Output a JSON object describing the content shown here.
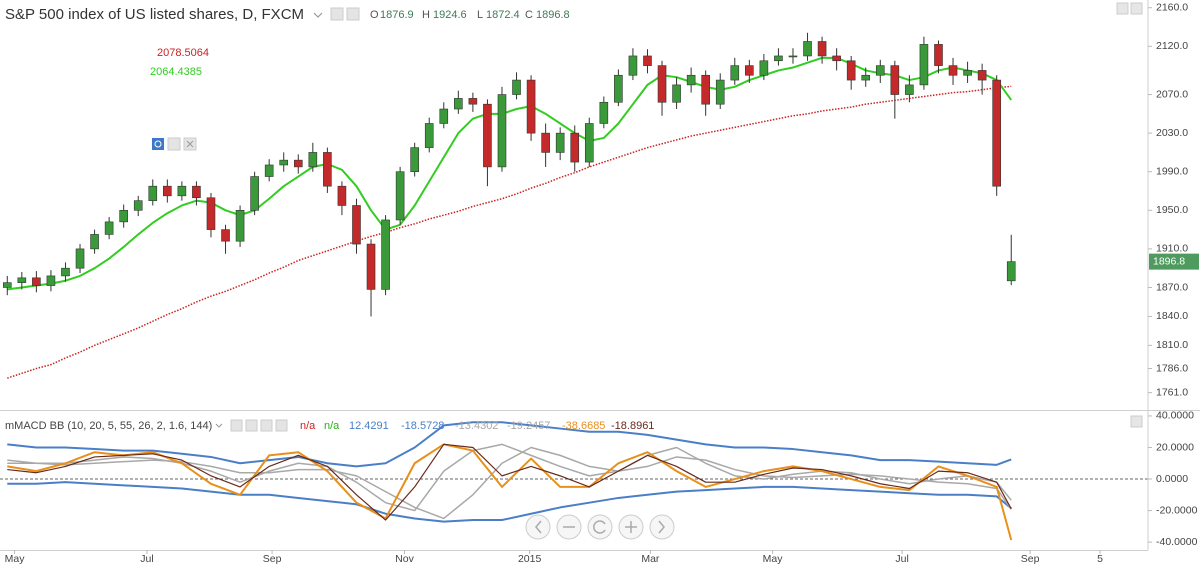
{
  "chart_data": [
    {
      "type": "candlestick",
      "title": "S&P 500 index of US listed shares, D, FXCM",
      "ohlc_labels": [
        "O",
        "H",
        "L",
        "C"
      ],
      "up_color": "#3a9a3a",
      "down_color": "#c42a2a",
      "x": [
        0,
        1,
        2,
        3,
        4,
        5,
        6,
        7,
        8,
        9,
        10,
        11,
        12,
        13,
        14,
        15,
        16,
        17,
        18,
        19,
        20,
        21,
        22,
        23,
        24,
        25,
        26,
        27,
        28,
        29,
        30,
        31,
        32,
        33,
        34,
        35,
        36,
        37,
        38,
        39,
        40,
        41,
        42,
        43,
        44,
        45,
        46,
        47,
        48,
        49,
        50,
        51,
        52,
        53,
        54,
        55,
        56,
        57,
        58,
        59,
        60,
        61,
        62,
        63,
        64,
        65,
        66,
        67,
        68,
        69
      ],
      "open": [
        1870,
        1875,
        1880,
        1872,
        1882,
        1890,
        1910,
        1925,
        1938,
        1950,
        1960,
        1975,
        1965,
        1975,
        1963,
        1930,
        1918,
        1950,
        1985,
        1997,
        2002,
        1995,
        2010,
        1975,
        1955,
        1915,
        1868,
        1940,
        1990,
        2015,
        2040,
        2055,
        2066,
        2060,
        1995,
        2070,
        2085,
        2030,
        2010,
        2030,
        2000,
        2040,
        2062,
        2090,
        2110,
        2100,
        2062,
        2080,
        2090,
        2060,
        2085,
        2100,
        2090,
        2105,
        2110,
        2110,
        2125,
        2110,
        2105,
        2085,
        2090,
        2100,
        2070,
        2080,
        2122,
        2100,
        2090,
        2095,
        2085,
        1876.9
      ],
      "high": [
        1882,
        1886,
        1887,
        1888,
        1896,
        1915,
        1930,
        1943,
        1956,
        1965,
        1982,
        1982,
        1980,
        1980,
        1968,
        1935,
        1955,
        1990,
        2003,
        2010,
        2008,
        2020,
        2015,
        1980,
        1962,
        1920,
        1945,
        1995,
        2020,
        2046,
        2062,
        2074,
        2072,
        2065,
        2078,
        2093,
        2090,
        2040,
        2036,
        2038,
        2046,
        2068,
        2096,
        2118,
        2117,
        2105,
        2088,
        2098,
        2095,
        2092,
        2108,
        2106,
        2112,
        2118,
        2118,
        2134,
        2130,
        2118,
        2110,
        2098,
        2106,
        2105,
        2090,
        2130,
        2126,
        2108,
        2104,
        2102,
        2090,
        1924.6
      ],
      "low": [
        1862,
        1868,
        1865,
        1866,
        1876,
        1885,
        1905,
        1920,
        1932,
        1944,
        1955,
        1958,
        1960,
        1955,
        1922,
        1905,
        1912,
        1945,
        1980,
        1990,
        1988,
        1990,
        1968,
        1945,
        1905,
        1840,
        1862,
        1935,
        1985,
        2010,
        2035,
        2050,
        2052,
        1975,
        1990,
        2065,
        2022,
        1995,
        2002,
        1990,
        1995,
        2035,
        2058,
        2085,
        2092,
        2048,
        2055,
        2072,
        2048,
        2055,
        2080,
        2082,
        2085,
        2100,
        2102,
        2105,
        2102,
        2095,
        2075,
        2078,
        2082,
        2045,
        2062,
        2075,
        2092,
        2080,
        2082,
        2070,
        1965,
        1872.4
      ],
      "close": [
        1875,
        1880,
        1872,
        1882,
        1890,
        1910,
        1925,
        1938,
        1950,
        1960,
        1975,
        1965,
        1975,
        1963,
        1930,
        1918,
        1950,
        1985,
        1997,
        2002,
        1995,
        2010,
        1975,
        1955,
        1915,
        1868,
        1940,
        1990,
        2015,
        2040,
        2055,
        2066,
        2060,
        1995,
        2070,
        2085,
        2030,
        2010,
        2030,
        2000,
        2040,
        2062,
        2090,
        2110,
        2100,
        2062,
        2080,
        2090,
        2060,
        2085,
        2100,
        2090,
        2105,
        2110,
        2110,
        2125,
        2110,
        2105,
        2085,
        2090,
        2100,
        2070,
        2080,
        2122,
        2100,
        2090,
        2095,
        2085,
        1975,
        1896.8
      ],
      "series": [
        {
          "color": "#cc2222",
          "style": "dotted",
          "values": [
            1776,
            1781,
            1786,
            1790,
            1797,
            1803,
            1810,
            1816,
            1822,
            1828,
            1835,
            1842,
            1848,
            1855,
            1861,
            1866,
            1872,
            1878,
            1885,
            1891,
            1898,
            1903,
            1908,
            1913,
            1918,
            1923,
            1927,
            1932,
            1936,
            1941,
            1945,
            1949,
            1954,
            1958,
            1962,
            1967,
            1973,
            1978,
            1984,
            1989,
            1995,
            2000,
            2005,
            2010,
            2015,
            2019,
            2023,
            2027,
            2030,
            2033,
            2036,
            2039,
            2042,
            2045,
            2048,
            2050,
            2053,
            2055,
            2057,
            2060,
            2062,
            2064,
            2066,
            2068,
            2070,
            2072,
            2073,
            2075,
            2077,
            2078.5064
          ]
        },
        {
          "color": "#33cc22",
          "style": "solid",
          "values": [
            1868,
            1870,
            1872,
            1874,
            1877,
            1882,
            1890,
            1900,
            1912,
            1925,
            1937,
            1947,
            1955,
            1960,
            1958,
            1950,
            1945,
            1950,
            1962,
            1975,
            1985,
            1995,
            1998,
            1992,
            1975,
            1950,
            1930,
            1935,
            1955,
            1980,
            2005,
            2030,
            2045,
            2050,
            2050,
            2055,
            2058,
            2050,
            2040,
            2030,
            2022,
            2025,
            2040,
            2060,
            2080,
            2090,
            2088,
            2083,
            2078,
            2075,
            2078,
            2085,
            2090,
            2095,
            2098,
            2103,
            2108,
            2108,
            2102,
            2095,
            2092,
            2090,
            2085,
            2088,
            2095,
            2098,
            2095,
            2092,
            2085,
            2064.4385
          ]
        }
      ],
      "xlim": [
        -0.5,
        78.4
      ],
      "xticks": [
        {
          "value": 0.5,
          "label": "May"
        },
        {
          "value": 9.6,
          "label": "Jul"
        },
        {
          "value": 18.2,
          "label": "Sep"
        },
        {
          "value": 27.3,
          "label": "Nov"
        },
        {
          "value": 35.9,
          "label": "2015"
        },
        {
          "value": 44.2,
          "label": "Mar"
        },
        {
          "value": 52.6,
          "label": "May"
        },
        {
          "value": 61.5,
          "label": "Jul"
        },
        {
          "value": 70.3,
          "label": "Sep"
        },
        {
          "value": 75.1,
          "label": "5"
        }
      ],
      "ylim": [
        1743,
        2168
      ],
      "yticks": [
        {
          "value": 2160,
          "label": "2160.0"
        },
        {
          "value": 2120,
          "label": "2120.0"
        },
        {
          "value": 2070,
          "label": "2070.0"
        },
        {
          "value": 2030,
          "label": "2030.0"
        },
        {
          "value": 1990,
          "label": "1990.0"
        },
        {
          "value": 1950,
          "label": "1950.0"
        },
        {
          "value": 1910,
          "label": "1910.0"
        },
        {
          "value": 1870,
          "label": "1870.0"
        },
        {
          "value": 1840,
          "label": "1840.0"
        },
        {
          "value": 1810,
          "label": "1810.0"
        },
        {
          "value": 1786,
          "label": "1786.0"
        },
        {
          "value": 1761,
          "label": "1761.0"
        }
      ],
      "grid": false,
      "price_tag_color": "#4f9a5f"
    },
    {
      "type": "line",
      "title": "mMACD BB (10, 20, 5, 55, 26, 2, 1.6, 144)",
      "status": [
        "n/a",
        "n/a"
      ],
      "status_colors": [
        "#cc2222",
        "#33aa22"
      ],
      "x": [
        0,
        2,
        4,
        6,
        8,
        10,
        12,
        14,
        16,
        18,
        20,
        22,
        24,
        26,
        28,
        30,
        32,
        34,
        36,
        38,
        40,
        42,
        44,
        46,
        48,
        50,
        52,
        54,
        56,
        58,
        60,
        62,
        64,
        66,
        68,
        69
      ],
      "series": [
        {
          "color": "#4a7fc8",
          "width": 2,
          "values": [
            22,
            20,
            20,
            19,
            18,
            18,
            16,
            14,
            10,
            12,
            14,
            10,
            8,
            10,
            20,
            34,
            36,
            36,
            34,
            32,
            30,
            30,
            28,
            25,
            22,
            20,
            20,
            19,
            17,
            15,
            12,
            12,
            11,
            10,
            9,
            12.4291
          ]
        },
        {
          "color": "#4a7fc8",
          "width": 2,
          "values": [
            -3,
            -3,
            -2,
            -3,
            -4,
            -5,
            -6,
            -8,
            -10,
            -10,
            -12,
            -14,
            -16,
            -22,
            -25,
            -27,
            -26,
            -26,
            -22,
            -18,
            -15,
            -12,
            -10,
            -8,
            -7,
            -6,
            -5,
            -5,
            -6,
            -7,
            -8,
            -9,
            -10,
            -10,
            -11,
            -18.5728
          ]
        },
        {
          "color": "#a8a8a8",
          "width": 1.5,
          "values": [
            12,
            10,
            10,
            12,
            14,
            13,
            10,
            5,
            -2,
            5,
            10,
            8,
            -2,
            -15,
            -20,
            5,
            18,
            22,
            15,
            8,
            2,
            5,
            15,
            20,
            10,
            2,
            0,
            3,
            5,
            4,
            0,
            -3,
            0,
            2,
            -2,
            -13.4302
          ]
        },
        {
          "color": "#a8a8a8",
          "width": 1.5,
          "values": [
            10,
            10,
            9,
            10,
            11,
            12,
            11,
            8,
            4,
            4,
            6,
            6,
            2,
            -8,
            -18,
            -25,
            -10,
            10,
            20,
            15,
            8,
            5,
            8,
            14,
            12,
            6,
            2,
            1,
            2,
            3,
            2,
            0,
            -2,
            -3,
            -6,
            -19.2457
          ]
        },
        {
          "color": "#e8901a",
          "width": 2,
          "values": [
            8,
            5,
            10,
            17,
            15,
            17,
            10,
            -3,
            -10,
            15,
            17,
            5,
            -15,
            -25,
            10,
            22,
            18,
            -5,
            13,
            -5,
            -5,
            10,
            17,
            5,
            -5,
            0,
            5,
            8,
            5,
            0,
            -5,
            -7,
            8,
            2,
            -5,
            -38.6685
          ]
        },
        {
          "color": "#6a2a1a",
          "width": 1.2,
          "values": [
            6,
            4,
            8,
            14,
            15,
            16,
            12,
            2,
            -5,
            8,
            15,
            8,
            -10,
            -26,
            -5,
            22,
            20,
            2,
            8,
            2,
            -5,
            5,
            15,
            8,
            -2,
            -2,
            3,
            7,
            6,
            2,
            -3,
            -6,
            5,
            4,
            -2,
            -18.8961
          ]
        }
      ],
      "ylim": [
        -45,
        42.5
      ],
      "yticks": [
        {
          "value": 40,
          "label": "40.0000"
        },
        {
          "value": 20,
          "label": "20.0000"
        },
        {
          "value": 0,
          "label": "0.0000"
        },
        {
          "value": -20,
          "label": "-20.0000"
        },
        {
          "value": -40,
          "label": "-40.0000"
        }
      ],
      "zero_line": true
    }
  ]
}
